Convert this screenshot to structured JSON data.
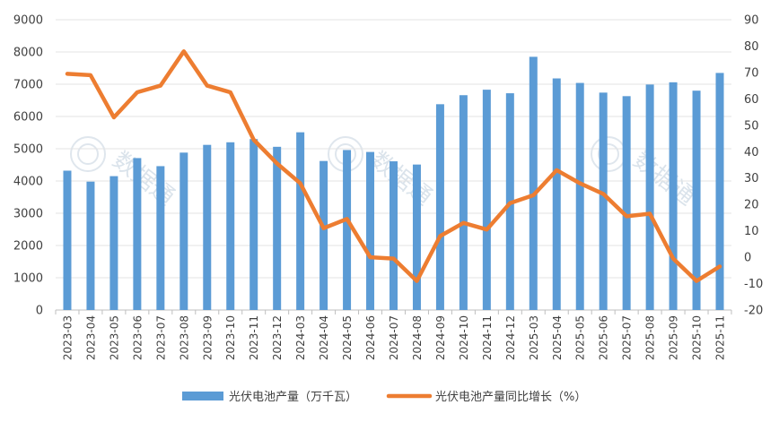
{
  "chart_data": {
    "type": "bar+line",
    "categories": [
      "2023-03",
      "2023-04",
      "2023-05",
      "2023-06",
      "2023-07",
      "2023-08",
      "2023-09",
      "2023-10",
      "2023-11",
      "2023-12",
      "2024-03",
      "2024-04",
      "2024-05",
      "2024-06",
      "2024-07",
      "2024-08",
      "2024-09",
      "2024-10",
      "2024-11",
      "2024-12",
      "2025-03",
      "2025-04",
      "2025-05",
      "2025-06",
      "2025-07",
      "2025-08",
      "2025-09",
      "2025-10",
      "2025-11"
    ],
    "series": [
      {
        "name": "光伏电池产量（万千瓦）",
        "type": "bar",
        "axis": "left",
        "color": "#5B9BD5",
        "values": [
          4320,
          3980,
          4150,
          4710,
          4460,
          4880,
          5120,
          5200,
          5300,
          5060,
          5510,
          4620,
          4960,
          4900,
          4610,
          4510,
          6380,
          6660,
          6830,
          6720,
          7850,
          7180,
          7040,
          6740,
          6630,
          6990,
          7060,
          6800,
          7350
        ]
      },
      {
        "name": "光伏电池产量同比增长（%）",
        "type": "line",
        "axis": "right",
        "color": "#ED7D31",
        "values": [
          69.5,
          69.0,
          53.0,
          62.5,
          65.0,
          78.0,
          65.0,
          62.5,
          44.5,
          35.5,
          28.0,
          11.0,
          14.5,
          0.0,
          -0.5,
          -9.0,
          8.0,
          13.0,
          10.5,
          20.5,
          23.5,
          33.0,
          28.0,
          24.0,
          15.5,
          16.5,
          -0.5,
          -9.0,
          -3.5
        ]
      }
    ],
    "left_axis": {
      "min": 0,
      "max": 9000,
      "step": 1000,
      "tick_labels": [
        "0",
        "1000",
        "2000",
        "3000",
        "4000",
        "5000",
        "6000",
        "7000",
        "8000",
        "9000"
      ]
    },
    "right_axis": {
      "min": -20,
      "max": 90,
      "step": 10,
      "tick_labels": [
        "-20",
        "-10",
        "0",
        "10",
        "20",
        "30",
        "40",
        "50",
        "60",
        "70",
        "80",
        "90"
      ]
    },
    "grid": true,
    "legend_position": "bottom",
    "watermark_text": "数据通"
  }
}
